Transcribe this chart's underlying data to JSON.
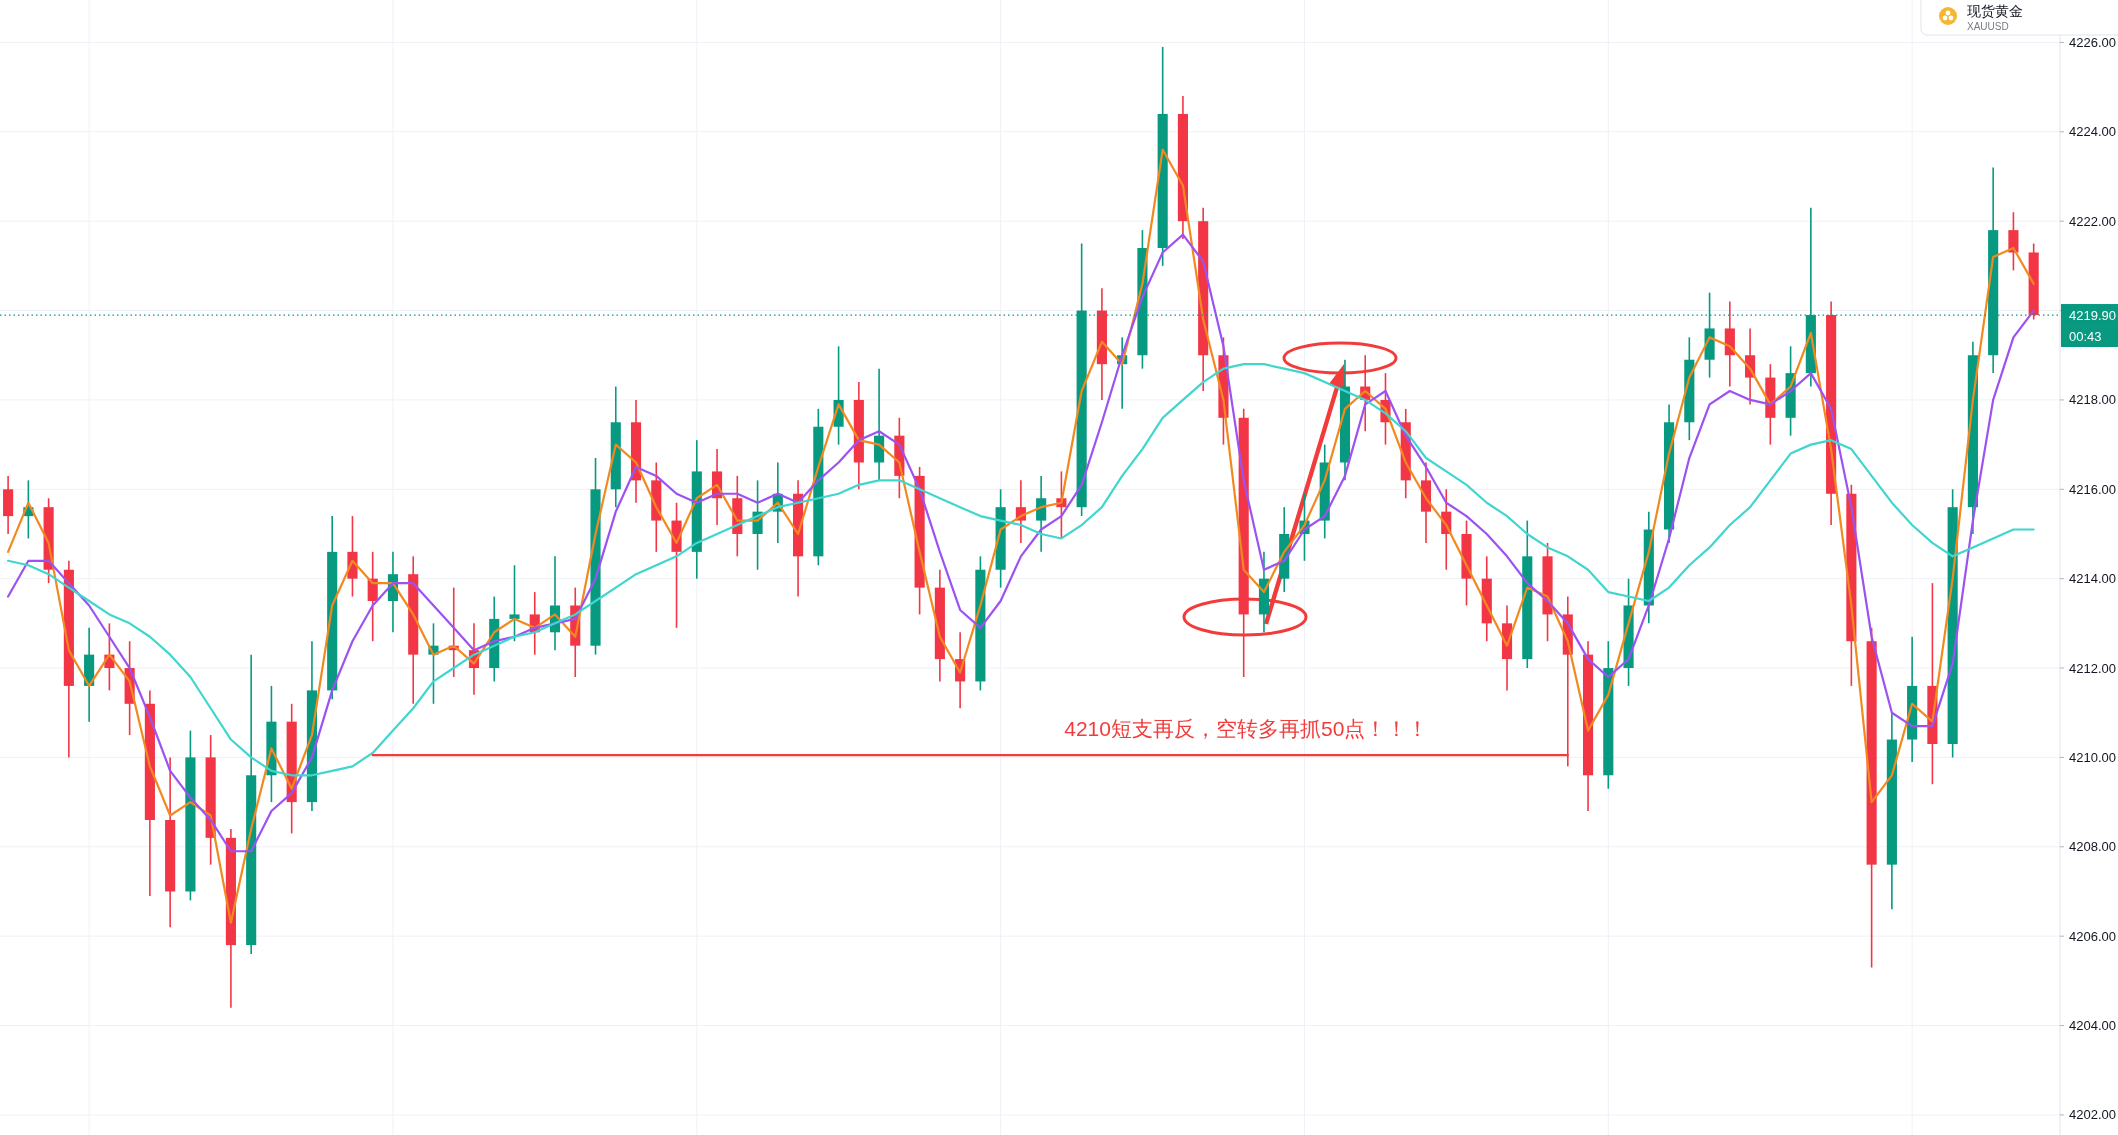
{
  "chart_data": {
    "type": "candlestick",
    "categories": [
      null,
      null,
      null,
      null,
      null,
      null,
      null,
      null,
      null,
      null,
      null,
      null,
      null,
      null,
      null,
      null,
      null,
      null,
      null,
      null,
      null,
      null,
      null,
      null,
      null,
      null,
      null,
      null,
      null,
      null,
      null,
      null,
      null,
      null,
      null,
      null,
      null,
      null,
      null,
      null,
      null,
      null,
      null,
      null,
      null,
      null,
      null,
      null,
      null,
      null,
      null,
      null,
      null,
      null,
      null,
      null,
      null,
      null,
      null,
      null,
      null,
      null,
      null,
      null,
      null,
      null,
      null,
      null,
      null,
      null,
      null,
      null,
      null,
      null,
      null,
      null,
      null,
      null,
      null,
      null,
      null,
      null,
      null,
      null,
      null,
      null,
      null,
      null,
      null,
      null,
      null,
      null,
      null,
      null,
      null,
      null,
      null,
      null,
      null,
      null,
      null
    ],
    "ohlc": [
      [
        4216.0,
        4216.3,
        4215.0,
        4215.4
      ],
      [
        4215.4,
        4216.2,
        4214.9,
        4215.6
      ],
      [
        4215.6,
        4215.8,
        4213.9,
        4214.2
      ],
      [
        4214.2,
        4214.4,
        4210.0,
        4211.6
      ],
      [
        4211.6,
        4212.9,
        4210.8,
        4212.3
      ],
      [
        4212.3,
        4213.0,
        4211.5,
        4212.0
      ],
      [
        4212.0,
        4212.6,
        4210.5,
        4211.2
      ],
      [
        4211.2,
        4211.5,
        4206.9,
        4208.6
      ],
      [
        4208.6,
        4210.0,
        4206.2,
        4207.0
      ],
      [
        4207.0,
        4210.6,
        4206.8,
        4210.0
      ],
      [
        4210.0,
        4210.5,
        4207.6,
        4208.2
      ],
      [
        4208.2,
        4208.4,
        4204.4,
        4205.8
      ],
      [
        4205.8,
        4212.3,
        4205.6,
        4209.6
      ],
      [
        4209.6,
        4211.6,
        4209.0,
        4210.8
      ],
      [
        4210.8,
        4211.2,
        4208.3,
        4209.0
      ],
      [
        4209.0,
        4212.6,
        4208.8,
        4211.5
      ],
      [
        4211.5,
        4215.4,
        4211.3,
        4214.6
      ],
      [
        4214.6,
        4215.4,
        4213.6,
        4214.0
      ],
      [
        4214.0,
        4214.6,
        4212.6,
        4213.5
      ],
      [
        4213.5,
        4214.6,
        4212.8,
        4214.1
      ],
      [
        4214.1,
        4214.5,
        4211.2,
        4212.3
      ],
      [
        4212.3,
        4213.0,
        4211.2,
        4212.5
      ],
      [
        4212.5,
        4213.8,
        4211.8,
        4212.4
      ],
      [
        4212.4,
        4213.0,
        4211.4,
        4212.0
      ],
      [
        4212.0,
        4213.6,
        4211.7,
        4213.1
      ],
      [
        4213.1,
        4214.3,
        4212.6,
        4213.2
      ],
      [
        4213.2,
        4213.7,
        4212.3,
        4212.8
      ],
      [
        4212.8,
        4214.5,
        4212.4,
        4213.4
      ],
      [
        4213.4,
        4213.8,
        4211.8,
        4212.5
      ],
      [
        4212.5,
        4216.7,
        4212.3,
        4216.0
      ],
      [
        4216.0,
        4218.3,
        4215.6,
        4217.5
      ],
      [
        4217.5,
        4218.0,
        4215.7,
        4216.2
      ],
      [
        4216.2,
        4216.6,
        4214.6,
        4215.3
      ],
      [
        4215.3,
        4215.7,
        4212.9,
        4214.6
      ],
      [
        4214.6,
        4217.1,
        4214.0,
        4216.4
      ],
      [
        4216.4,
        4216.9,
        4215.2,
        4215.8
      ],
      [
        4215.8,
        4216.3,
        4214.5,
        4215.0
      ],
      [
        4215.0,
        4216.2,
        4214.2,
        4215.5
      ],
      [
        4215.5,
        4216.6,
        4214.8,
        4215.9
      ],
      [
        4215.9,
        4216.2,
        4213.6,
        4214.5
      ],
      [
        4214.5,
        4217.8,
        4214.3,
        4217.4
      ],
      [
        4217.4,
        4219.2,
        4217.0,
        4218.0
      ],
      [
        4218.0,
        4218.4,
        4216.0,
        4216.6
      ],
      [
        4216.6,
        4218.7,
        4216.2,
        4217.2
      ],
      [
        4217.2,
        4217.6,
        4215.8,
        4216.3
      ],
      [
        4216.3,
        4216.5,
        4213.2,
        4213.8
      ],
      [
        4213.8,
        4214.2,
        4211.7,
        4212.2
      ],
      [
        4212.2,
        4212.8,
        4211.1,
        4211.7
      ],
      [
        4211.7,
        4214.5,
        4211.5,
        4214.2
      ],
      [
        4214.2,
        4216.0,
        4213.8,
        4215.6
      ],
      [
        4215.6,
        4216.2,
        4214.8,
        4215.3
      ],
      [
        4215.3,
        4216.3,
        4214.6,
        4215.8
      ],
      [
        4215.8,
        4216.4,
        4214.9,
        4215.6
      ],
      [
        4215.6,
        4221.5,
        4215.4,
        4220.0
      ],
      [
        4220.0,
        4220.5,
        4218.0,
        4218.8
      ],
      [
        4218.8,
        4219.4,
        4217.8,
        4219.0
      ],
      [
        4219.0,
        4221.8,
        4218.7,
        4221.4
      ],
      [
        4221.4,
        4225.9,
        4221.0,
        4224.4
      ],
      [
        4224.4,
        4224.8,
        4221.6,
        4222.0
      ],
      [
        4222.0,
        4222.3,
        4218.2,
        4219.0
      ],
      [
        4219.0,
        4219.4,
        4217.0,
        4217.6
      ],
      [
        4217.6,
        4217.8,
        4211.8,
        4213.2
      ],
      [
        4213.2,
        4214.6,
        4212.8,
        4214.0
      ],
      [
        4214.0,
        4215.6,
        4213.7,
        4215.0
      ],
      [
        4215.0,
        4215.9,
        4214.4,
        4215.3
      ],
      [
        4215.3,
        4217.0,
        4214.9,
        4216.6
      ],
      [
        4216.6,
        4218.9,
        4216.2,
        4218.3
      ],
      [
        4218.3,
        4219.0,
        4217.3,
        4218.0
      ],
      [
        4218.0,
        4218.6,
        4217.0,
        4217.5
      ],
      [
        4217.5,
        4217.8,
        4215.8,
        4216.2
      ],
      [
        4216.2,
        4216.6,
        4214.8,
        4215.5
      ],
      [
        4215.5,
        4216.0,
        4214.2,
        4215.0
      ],
      [
        4215.0,
        4215.3,
        4213.4,
        4214.0
      ],
      [
        4214.0,
        4214.5,
        4212.6,
        4213.0
      ],
      [
        4213.0,
        4213.4,
        4211.5,
        4212.2
      ],
      [
        4212.2,
        4215.3,
        4212.0,
        4214.5
      ],
      [
        4214.5,
        4214.8,
        4212.6,
        4213.2
      ],
      [
        4213.2,
        4213.6,
        4209.8,
        4212.3
      ],
      [
        4212.3,
        4212.6,
        4208.8,
        4209.6
      ],
      [
        4209.6,
        4212.6,
        4209.3,
        4212.0
      ],
      [
        4212.0,
        4214.0,
        4211.6,
        4213.4
      ],
      [
        4213.4,
        4215.5,
        4213.0,
        4215.1
      ],
      [
        4215.1,
        4217.9,
        4214.8,
        4217.5
      ],
      [
        4217.5,
        4219.4,
        4217.1,
        4218.9
      ],
      [
        4218.9,
        4220.4,
        4218.5,
        4219.6
      ],
      [
        4219.6,
        4220.2,
        4218.3,
        4219.0
      ],
      [
        4219.0,
        4219.6,
        4217.9,
        4218.5
      ],
      [
        4218.5,
        4218.8,
        4217.0,
        4217.6
      ],
      [
        4217.6,
        4219.2,
        4217.2,
        4218.6
      ],
      [
        4218.6,
        4222.3,
        4218.3,
        4219.9
      ],
      [
        4219.9,
        4220.2,
        4215.2,
        4215.9
      ],
      [
        4215.9,
        4216.1,
        4211.6,
        4212.6
      ],
      [
        4212.6,
        4212.9,
        4205.3,
        4207.6
      ],
      [
        4207.6,
        4211.0,
        4206.6,
        4210.4
      ],
      [
        4210.4,
        4212.7,
        4209.9,
        4211.6
      ],
      [
        4211.6,
        4213.9,
        4209.4,
        4210.3
      ],
      [
        4210.3,
        4216.0,
        4210.0,
        4215.6
      ],
      [
        4215.6,
        4219.3,
        4215.0,
        4219.0
      ],
      [
        4219.0,
        4223.2,
        4218.6,
        4221.8
      ],
      [
        4221.8,
        4222.2,
        4220.9,
        4221.3
      ],
      [
        4221.3,
        4221.5,
        4219.8,
        4219.9
      ]
    ],
    "colors": [
      "#f23645",
      "#089981",
      "#f23645",
      "#f23645",
      "#089981",
      "#f23645",
      "#f23645",
      "#f23645",
      "#f23645",
      "#089981",
      "#f23645",
      "#f23645",
      "#089981",
      "#089981",
      "#f23645",
      "#089981",
      "#089981",
      "#f23645",
      "#f23645",
      "#089981",
      "#f23645",
      "#089981",
      "#f23645",
      "#f23645",
      "#089981",
      "#089981",
      "#f23645",
      "#089981",
      "#f23645",
      "#089981",
      "#089981",
      "#f23645",
      "#f23645",
      "#f23645",
      "#089981",
      "#f23645",
      "#f23645",
      "#089981",
      "#089981",
      "#f23645",
      "#089981",
      "#089981",
      "#f23645",
      "#089981",
      "#f23645",
      "#f23645",
      "#f23645",
      "#f23645",
      "#089981",
      "#089981",
      "#f23645",
      "#089981",
      "#f23645",
      "#089981",
      "#f23645",
      "#089981",
      "#089981",
      "#089981",
      "#f23645",
      "#f23645",
      "#f23645",
      "#f23645",
      "#089981",
      "#089981",
      "#089981",
      "#089981",
      "#089981",
      "#f23645",
      "#f23645",
      "#f23645",
      "#f23645",
      "#f23645",
      "#f23645",
      "#f23645",
      "#f23645",
      "#089981",
      "#f23645",
      "#f23645",
      "#f23645",
      "#089981",
      "#089981",
      "#089981",
      "#089981",
      "#089981",
      "#089981",
      "#f23645",
      "#f23645",
      "#f23645",
      "#089981",
      "#089981",
      "#f23645",
      "#f23645",
      "#f23645",
      "#089981",
      "#089981",
      "#f23645",
      "#089981",
      "#089981",
      "#089981",
      "#f23645",
      "#f23645"
    ],
    "series": [
      {
        "type": "line",
        "color": "#f2891f",
        "values": [
          4214.6,
          4215.7,
          4214.8,
          4212.4,
          4211.6,
          4212.3,
          4211.7,
          4209.8,
          4208.7,
          4209.0,
          4208.7,
          4206.3,
          4208.4,
          4210.2,
          4209.3,
          4210.5,
          4213.4,
          4214.4,
          4213.9,
          4213.9,
          4213.2,
          4212.3,
          4212.5,
          4212.1,
          4212.8,
          4213.1,
          4212.9,
          4213.2,
          4212.7,
          4215.0,
          4217.0,
          4216.6,
          4215.6,
          4214.8,
          4215.8,
          4216.1,
          4215.3,
          4215.3,
          4215.7,
          4215.0,
          4216.5,
          4217.9,
          4217.1,
          4217.0,
          4216.6,
          4214.6,
          4212.7,
          4211.9,
          4213.4,
          4215.1,
          4215.4,
          4215.6,
          4215.7,
          4218.2,
          4219.3,
          4218.8,
          4220.6,
          4223.6,
          4222.8,
          4219.8,
          4218.0,
          4214.2,
          4213.7,
          4214.6,
          4215.2,
          4216.2,
          4217.8,
          4218.2,
          4217.8,
          4216.6,
          4215.8,
          4215.2,
          4214.3,
          4213.4,
          4212.5,
          4213.8,
          4213.6,
          4212.6,
          4210.6,
          4211.4,
          4213.0,
          4214.6,
          4216.8,
          4218.5,
          4219.4,
          4219.2,
          4218.7,
          4217.9,
          4218.3,
          4219.5,
          4216.9,
          4213.4,
          4209.0,
          4209.6,
          4211.2,
          4210.8,
          4214.0,
          4218.0,
          4221.2,
          4221.4,
          4220.6
        ]
      },
      {
        "type": "line",
        "color": "#9c52f2",
        "values": [
          4213.6,
          4214.4,
          4214.4,
          4213.9,
          4213.4,
          4212.7,
          4212.0,
          4210.9,
          4209.7,
          4209.1,
          4208.6,
          4207.9,
          4207.9,
          4208.8,
          4209.2,
          4210.0,
          4211.5,
          4212.6,
          4213.4,
          4213.9,
          4213.9,
          4213.4,
          4212.9,
          4212.4,
          4212.6,
          4212.7,
          4212.9,
          4213.0,
          4213.1,
          4214.0,
          4215.5,
          4216.5,
          4216.3,
          4215.9,
          4215.7,
          4215.9,
          4215.9,
          4215.7,
          4215.9,
          4215.7,
          4216.2,
          4216.6,
          4217.1,
          4217.3,
          4217.0,
          4216.0,
          4214.6,
          4213.3,
          4212.9,
          4213.5,
          4214.5,
          4215.1,
          4215.4,
          4216.1,
          4217.5,
          4219.0,
          4220.3,
          4221.3,
          4221.7,
          4221.1,
          4219.2,
          4216.2,
          4214.2,
          4214.4,
          4215.1,
          4215.4,
          4216.3,
          4217.9,
          4218.2,
          4217.2,
          4216.5,
          4215.7,
          4215.4,
          4215.0,
          4214.5,
          4213.9,
          4213.5,
          4213.0,
          4212.2,
          4211.8,
          4212.2,
          4213.4,
          4214.9,
          4216.7,
          4217.9,
          4218.2,
          4218.0,
          4217.9,
          4218.2,
          4218.6,
          4217.8,
          4215.6,
          4212.7,
          4211.0,
          4210.7,
          4210.7,
          4212.1,
          4215.3,
          4218.0,
          4219.4,
          4220.0
        ]
      },
      {
        "type": "line",
        "color": "#3fd6cf",
        "values": [
          4214.4,
          4214.3,
          4214.1,
          4213.8,
          4213.5,
          4213.2,
          4213.0,
          4212.7,
          4212.3,
          4211.8,
          4211.1,
          4210.4,
          4210.0,
          4209.7,
          4209.6,
          4209.6,
          4209.7,
          4209.8,
          4210.1,
          4210.6,
          4211.1,
          4211.7,
          4212.0,
          4212.3,
          4212.5,
          4212.7,
          4212.8,
          4213.0,
          4213.2,
          4213.5,
          4213.8,
          4214.1,
          4214.3,
          4214.5,
          4214.8,
          4215.0,
          4215.2,
          4215.4,
          4215.6,
          4215.7,
          4215.8,
          4215.9,
          4216.1,
          4216.2,
          4216.2,
          4216.0,
          4215.8,
          4215.6,
          4215.4,
          4215.3,
          4215.2,
          4215.0,
          4214.9,
          4215.2,
          4215.6,
          4216.3,
          4216.9,
          4217.6,
          4218.0,
          4218.4,
          4218.7,
          4218.8,
          4218.8,
          4218.7,
          4218.6,
          4218.4,
          4218.2,
          4218.0,
          4217.7,
          4217.3,
          4216.7,
          4216.4,
          4216.1,
          4215.7,
          4215.4,
          4215.0,
          4214.7,
          4214.5,
          4214.2,
          4213.7,
          4213.6,
          4213.5,
          4213.8,
          4214.3,
          4214.7,
          4215.2,
          4215.6,
          4216.2,
          4216.8,
          4217.0,
          4217.1,
          4216.9,
          4216.3,
          4215.7,
          4215.2,
          4214.8,
          4214.5,
          4214.7,
          4214.9,
          4215.1,
          4215.1
        ]
      },
      {
        "type": "line",
        "color": "#f23b3b",
        "values": [
          null,
          null,
          null,
          null,
          null,
          null,
          null,
          null,
          null,
          null,
          null,
          null,
          null,
          null,
          null,
          null,
          null,
          null,
          4210.05,
          4210.05,
          4210.05,
          4210.05,
          4210.05,
          4210.05,
          4210.05,
          4210.05,
          4210.05,
          4210.05,
          4210.05,
          4210.05,
          4210.05,
          4210.05,
          4210.05,
          4210.05,
          4210.05,
          4210.05,
          4210.05,
          4210.05,
          4210.05,
          4210.05,
          4210.05,
          4210.05,
          4210.05,
          4210.05,
          4210.05,
          4210.05,
          4210.05,
          4210.05,
          4210.05,
          4210.05,
          4210.05,
          4210.05,
          4210.05,
          4210.05,
          4210.05,
          4210.05,
          4210.05,
          4210.05,
          4210.05,
          4210.05,
          4210.05,
          4210.05,
          4210.05,
          4210.05,
          4210.05,
          4210.05,
          4210.05,
          4210.05,
          4210.05,
          4210.05,
          4210.05,
          4210.05,
          4210.05,
          4210.05,
          4210.05,
          4210.05,
          4210.05,
          4210.05,
          null,
          null,
          null,
          null,
          null,
          null,
          null,
          null,
          null,
          null,
          null,
          null,
          null,
          null,
          null,
          null,
          null,
          null,
          null,
          null,
          null,
          null,
          null
        ]
      }
    ],
    "ylim": [
      4201.55,
      4226.95
    ],
    "yticks": [
      {
        "value": 4202,
        "label": "4202.00"
      },
      {
        "value": 4204,
        "label": "4204.00"
      },
      {
        "value": 4206,
        "label": "4206.00"
      },
      {
        "value": 4208,
        "label": "4208.00"
      },
      {
        "value": 4210,
        "label": "4210.00"
      },
      {
        "value": 4212,
        "label": "4212.00"
      },
      {
        "value": 4214,
        "label": "4214.00"
      },
      {
        "value": 4216,
        "label": "4216.00"
      },
      {
        "value": 4218,
        "label": "4218.00"
      },
      {
        "value": 4220,
        "label": null
      },
      {
        "value": 4222,
        "label": "4222.00"
      },
      {
        "value": 4224,
        "label": "4224.00"
      },
      {
        "value": 4226,
        "label": "4226.00"
      }
    ],
    "tick_labels": "y",
    "grid": true,
    "ref_lines": [
      {
        "axis": "y",
        "value": 4219.9,
        "label": "4219.90",
        "color": "#089981",
        "line_style": "dotted"
      }
    ],
    "annotations": [
      {
        "text": "4210短支再反，空转多再抓50点！！！",
        "y": 4210.05
      },
      "00:43",
      "现货黄金",
      "XAUUSD"
    ]
  }
}
